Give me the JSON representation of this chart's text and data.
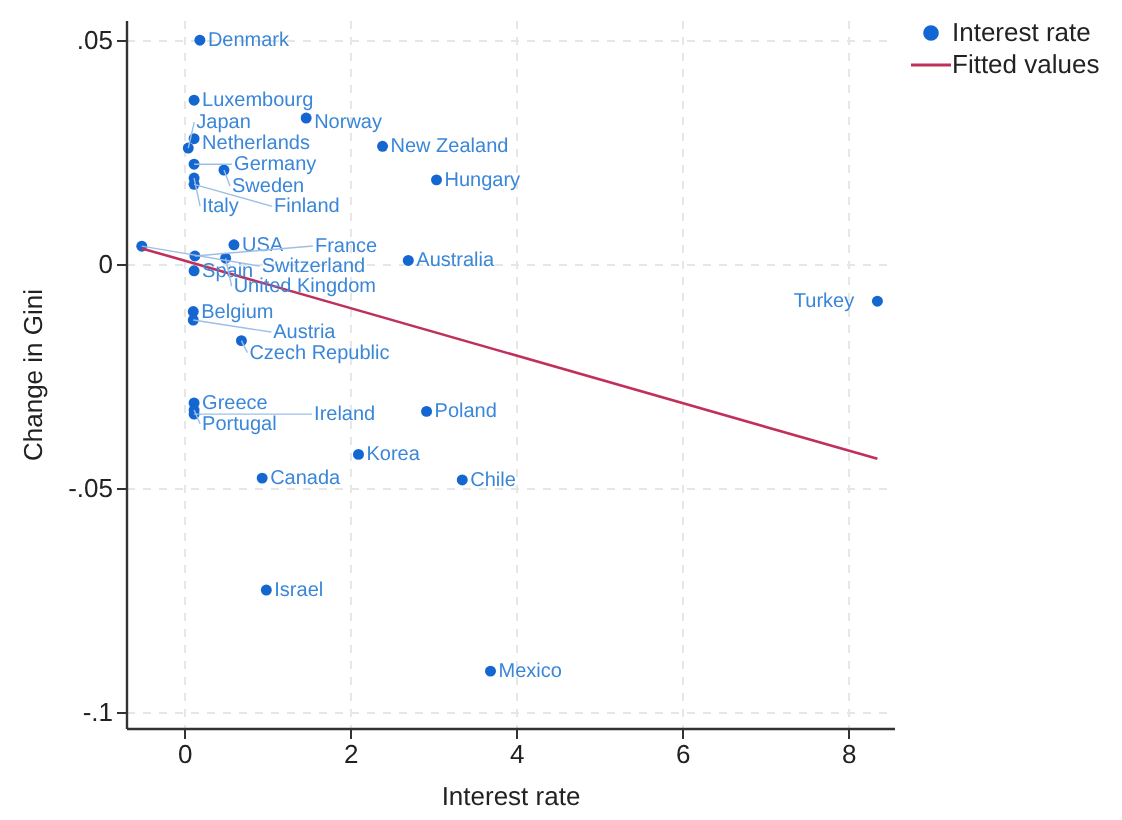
{
  "chart_data": {
    "type": "scatter",
    "xlabel": "Interest rate",
    "ylabel": "Change in Gini",
    "xlim": [
      -0.7,
      8.55
    ],
    "ylim": [
      -0.1036,
      0.0545
    ],
    "xticks": [
      0,
      2,
      4,
      6,
      8
    ],
    "yticks": [
      {
        "value": 0.05,
        "label": ".05"
      },
      {
        "value": 0,
        "label": "0"
      },
      {
        "value": -0.05,
        "label": "-.05"
      },
      {
        "value": -0.1,
        "label": "-.1"
      }
    ],
    "grid": true,
    "legend": "right",
    "series": [
      {
        "name": "Interest rate",
        "type": "scatter",
        "marker": "circle",
        "color": "#1466d0",
        "x": [
          0.19,
          0.12,
          1.47,
          0.12,
          0.05,
          0.12,
          0.48,
          0.12,
          0.12,
          2.39,
          3.04,
          -0.51,
          0.6,
          0.13,
          0.5,
          0.12,
          2.7,
          0.11,
          0.11,
          0.69,
          0.12,
          0.12,
          0.12,
          2.92,
          2.1,
          0.94,
          3.35,
          0.99,
          3.69,
          8.35
        ],
        "values": [
          0.05,
          0.0366,
          0.0326,
          0.028,
          0.0259,
          0.0223,
          0.021,
          0.0192,
          0.0178,
          0.0263,
          0.0188,
          0.004,
          0.0043,
          0.0018,
          0.0013,
          -0.0015,
          0.0008,
          -0.0106,
          -0.0125,
          -0.0171,
          -0.031,
          -0.0326,
          -0.0335,
          -0.0329,
          -0.0425,
          -0.0478,
          -0.0482,
          -0.0728,
          -0.0909,
          -0.0083
        ]
      },
      {
        "name": "Fitted values",
        "type": "line",
        "color": "#c0305a",
        "line_style": "solid",
        "x": [
          -0.51,
          8.35
        ],
        "values": [
          0.0035,
          -0.0435
        ]
      }
    ],
    "annotations": [
      {
        "text": "Denmark",
        "x": 0.19,
        "y": 0.05
      },
      {
        "text": "Luxembourg",
        "x": 0.12,
        "y": 0.0366
      },
      {
        "text": "Norway",
        "x": 1.47,
        "y": 0.0326
      },
      {
        "text": "Netherlands",
        "x": 0.12,
        "y": 0.028
      },
      {
        "text": "Japan",
        "x": 0.05,
        "y": 0.0259
      },
      {
        "text": "Germany",
        "x": 0.12,
        "y": 0.0223
      },
      {
        "text": "Sweden",
        "x": 0.48,
        "y": 0.021
      },
      {
        "text": "Italy",
        "x": 0.12,
        "y": 0.0192
      },
      {
        "text": "Finland",
        "x": 0.12,
        "y": 0.0178
      },
      {
        "text": "New Zealand",
        "x": 2.39,
        "y": 0.0263
      },
      {
        "text": "Hungary",
        "x": 3.04,
        "y": 0.0188
      },
      {
        "text": "Switzerland",
        "x": -0.51,
        "y": 0.004
      },
      {
        "text": "USA",
        "x": 0.6,
        "y": 0.0043
      },
      {
        "text": "France",
        "x": 0.13,
        "y": 0.0018
      },
      {
        "text": "United Kingdom",
        "x": 0.5,
        "y": 0.0013
      },
      {
        "text": "Spain",
        "x": 0.12,
        "y": -0.0015
      },
      {
        "text": "Australia",
        "x": 2.7,
        "y": 0.0008
      },
      {
        "text": "Belgium",
        "x": 0.11,
        "y": -0.0106
      },
      {
        "text": "Austria",
        "x": 0.11,
        "y": -0.0125
      },
      {
        "text": "Czech Republic",
        "x": 0.69,
        "y": -0.0171
      },
      {
        "text": "Greece",
        "x": 0.12,
        "y": -0.031
      },
      {
        "text": "Portugal",
        "x": 0.12,
        "y": -0.0326
      },
      {
        "text": "Ireland",
        "x": 0.12,
        "y": -0.0335
      },
      {
        "text": "Poland",
        "x": 2.92,
        "y": -0.0329
      },
      {
        "text": "Korea",
        "x": 2.1,
        "y": -0.0425
      },
      {
        "text": "Canada",
        "x": 0.94,
        "y": -0.0478
      },
      {
        "text": "Chile",
        "x": 3.35,
        "y": -0.0482
      },
      {
        "text": "Israel",
        "x": 0.99,
        "y": -0.0728
      },
      {
        "text": "Mexico",
        "x": 3.69,
        "y": -0.0909
      },
      {
        "text": "Turkey",
        "x": 8.35,
        "y": -0.0083
      }
    ]
  }
}
